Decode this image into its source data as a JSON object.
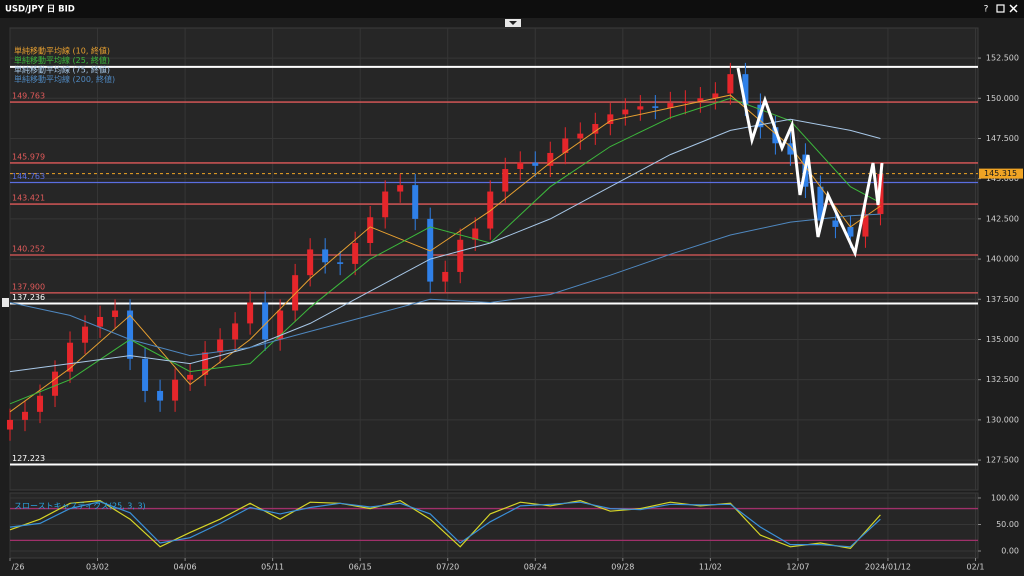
{
  "window": {
    "title": "USD/JPY 日 BID",
    "help": "?"
  },
  "chart_data": [
    {
      "type": "candlestick",
      "x": [
        0,
        6,
        12,
        18,
        24,
        30,
        36,
        42,
        48,
        54,
        60,
        66,
        72,
        78,
        84,
        90,
        96,
        102,
        108,
        114,
        120,
        126,
        132,
        138,
        144,
        150,
        156,
        162,
        168,
        174,
        180,
        186,
        192,
        198,
        204,
        210,
        216,
        222,
        228,
        234,
        240,
        246,
        252,
        258,
        264,
        270,
        276,
        282,
        288,
        294,
        300,
        306,
        312,
        318,
        324,
        330,
        336,
        342,
        348
      ],
      "open": [
        129.4,
        130.0,
        130.5,
        131.5,
        133.0,
        134.8,
        135.8,
        136.4,
        136.8,
        133.8,
        131.8,
        131.2,
        132.5,
        132.8,
        134.2,
        135.0,
        136.0,
        137.3,
        135.0,
        136.8,
        139.0,
        140.6,
        139.8,
        139.7,
        141.0,
        142.6,
        144.2,
        144.6,
        142.5,
        138.6,
        139.2,
        141.2,
        141.9,
        144.2,
        145.6,
        146.0,
        145.8,
        146.6,
        147.5,
        147.8,
        148.4,
        149.0,
        149.3,
        149.5,
        149.4,
        149.7,
        149.8,
        150.0,
        150.3,
        151.5,
        149.6,
        148.2,
        147.2,
        146.5,
        144.5,
        142.4,
        142.0,
        141.4,
        142.8
      ],
      "high": [
        130.7,
        131.2,
        132.2,
        133.7,
        135.5,
        136.5,
        137.1,
        137.5,
        137.5,
        134.5,
        132.5,
        133.2,
        133.5,
        134.9,
        135.7,
        136.7,
        138.0,
        138.0,
        137.5,
        139.7,
        141.3,
        141.3,
        140.5,
        141.7,
        143.3,
        144.9,
        145.3,
        145.3,
        143.2,
        139.9,
        141.9,
        142.6,
        144.9,
        146.3,
        146.7,
        146.7,
        147.3,
        148.2,
        148.5,
        149.1,
        149.7,
        150.0,
        150.2,
        150.2,
        150.4,
        150.5,
        150.7,
        151.0,
        152.2,
        152.2,
        150.3,
        148.9,
        147.9,
        147.2,
        145.2,
        143.1,
        142.7,
        143.5,
        146.0
      ],
      "low": [
        128.7,
        129.3,
        129.8,
        130.8,
        132.3,
        134.1,
        135.1,
        135.7,
        133.1,
        131.1,
        130.5,
        130.5,
        131.8,
        132.1,
        133.5,
        134.3,
        135.3,
        134.3,
        134.3,
        136.1,
        138.3,
        139.1,
        139.0,
        139.0,
        140.3,
        141.9,
        143.5,
        141.8,
        137.9,
        137.9,
        138.5,
        140.5,
        141.2,
        143.5,
        144.9,
        145.1,
        145.1,
        145.9,
        146.8,
        147.1,
        147.7,
        148.3,
        148.6,
        148.7,
        148.7,
        149.0,
        149.1,
        149.3,
        149.6,
        148.9,
        147.5,
        146.5,
        145.8,
        143.8,
        141.7,
        141.3,
        140.7,
        140.7,
        142.1
      ],
      "close": [
        130.0,
        130.5,
        131.5,
        133.0,
        134.8,
        135.8,
        136.4,
        136.8,
        133.8,
        131.8,
        131.2,
        132.5,
        132.8,
        134.2,
        135.0,
        136.0,
        137.3,
        135.0,
        136.8,
        139.0,
        140.6,
        139.8,
        139.7,
        141.0,
        142.6,
        144.2,
        144.6,
        142.5,
        138.6,
        139.2,
        141.2,
        141.9,
        144.2,
        145.6,
        146.0,
        145.8,
        146.6,
        147.5,
        147.8,
        148.4,
        149.0,
        149.3,
        149.5,
        149.4,
        149.7,
        149.8,
        150.0,
        150.3,
        151.5,
        149.6,
        148.2,
        147.2,
        146.5,
        144.5,
        142.4,
        142.0,
        141.4,
        142.8,
        145.3
      ],
      "up_color": "#e5262b",
      "down_color": "#2f80e8",
      "series": [
        {
          "name": "単純移動平均線 (10, 終値)",
          "color": "#e8a030",
          "x": [
            0,
            24,
            48,
            72,
            96,
            120,
            144,
            168,
            192,
            216,
            240,
            264,
            288,
            312,
            336,
            348
          ],
          "values": [
            130.5,
            133.2,
            136.5,
            132.2,
            135.0,
            138.8,
            142.0,
            140.5,
            143.0,
            146.0,
            148.6,
            149.4,
            150.2,
            147.0,
            142.0,
            143.3
          ]
        },
        {
          "name": "単純移動平均線 (25, 終値)",
          "color": "#3cb83c",
          "x": [
            0,
            24,
            48,
            72,
            96,
            120,
            144,
            168,
            192,
            216,
            240,
            264,
            288,
            312,
            336,
            348
          ],
          "values": [
            131.0,
            132.5,
            135.0,
            133.0,
            133.5,
            137.0,
            140.0,
            142.0,
            141.0,
            144.5,
            147.0,
            148.8,
            150.0,
            148.6,
            144.5,
            143.5
          ]
        },
        {
          "name": "単純移動平均線 (75, 終値)",
          "color": "#a8c8e8",
          "x": [
            0,
            24,
            48,
            72,
            96,
            120,
            144,
            168,
            192,
            216,
            240,
            264,
            288,
            312,
            336,
            348
          ],
          "values": [
            133.0,
            133.5,
            134.0,
            133.5,
            134.5,
            136.0,
            138.0,
            140.0,
            141.0,
            142.5,
            144.5,
            146.5,
            148.0,
            148.7,
            148.0,
            147.5
          ]
        },
        {
          "name": "単純移動平均線 (200, 終値)",
          "color": "#4f88c0",
          "x": [
            0,
            24,
            48,
            72,
            96,
            120,
            144,
            168,
            192,
            216,
            240,
            264,
            288,
            312,
            336,
            348
          ],
          "values": [
            137.3,
            136.5,
            135.0,
            134.0,
            134.5,
            135.5,
            136.5,
            137.5,
            137.3,
            137.8,
            139.0,
            140.3,
            141.5,
            142.3,
            142.7,
            142.8
          ]
        }
      ],
      "levels": [
        {
          "value": 151.95,
          "color": "#ffffff"
        },
        {
          "value": 149.763,
          "label": "149.763",
          "color": "#e05a5a"
        },
        {
          "value": 145.979,
          "label": "145.979",
          "color": "#e05a5a"
        },
        {
          "value": 144.763,
          "label": "144.763",
          "color": "#5a6ee0"
        },
        {
          "value": 143.421,
          "label": "143.421",
          "color": "#e05a5a"
        },
        {
          "value": 140.252,
          "label": "140.252",
          "color": "#e05a5a"
        },
        {
          "value": 137.9,
          "label": "137.900",
          "color": "#e05a5a"
        },
        {
          "value": 137.236,
          "label": "137.236",
          "color": "#ffffff"
        },
        {
          "value": 127.223,
          "label": "127.223",
          "color": "#ffffff"
        }
      ],
      "last_price": {
        "value": 145.315,
        "label": "145.315",
        "color": "#f0a424"
      },
      "xlim": [
        0,
        387
      ],
      "ylim": [
        125.64,
        154.37
      ],
      "yticks": [
        {
          "value": 127.5,
          "label": "127.500"
        },
        {
          "value": 130,
          "label": "130.000"
        },
        {
          "value": 132.5,
          "label": "132.500"
        },
        {
          "value": 135,
          "label": "135.000"
        },
        {
          "value": 137.5,
          "label": "137.500"
        },
        {
          "value": 140,
          "label": "140.000"
        },
        {
          "value": 142.5,
          "label": "142.500"
        },
        {
          "value": 145,
          "label": "145.000"
        },
        {
          "value": 147.5,
          "label": "147.500"
        },
        {
          "value": 150,
          "label": "150.000"
        },
        {
          "value": 152.5,
          "label": "152.500"
        }
      ],
      "grid": true
    },
    {
      "type": "line",
      "title": "スローストキャスティクス(25, 3, 3)",
      "x": [
        0,
        12,
        24,
        36,
        48,
        60,
        72,
        84,
        96,
        108,
        120,
        132,
        144,
        156,
        168,
        180,
        192,
        204,
        216,
        228,
        240,
        252,
        264,
        276,
        288,
        300,
        312,
        324,
        336,
        348
      ],
      "series": [
        {
          "color": "#d6d628",
          "values": [
            40,
            60,
            90,
            95,
            60,
            8,
            35,
            60,
            90,
            60,
            92,
            90,
            80,
            95,
            60,
            8,
            70,
            92,
            85,
            95,
            75,
            80,
            92,
            85,
            90,
            30,
            8,
            15,
            5,
            68
          ]
        },
        {
          "color": "#3a90d8",
          "values": [
            45,
            52,
            80,
            93,
            72,
            15,
            25,
            52,
            82,
            70,
            82,
            90,
            83,
            90,
            70,
            15,
            55,
            85,
            88,
            92,
            80,
            78,
            88,
            87,
            88,
            45,
            12,
            12,
            8,
            60
          ]
        }
      ],
      "levels": [
        {
          "value": 80,
          "color": "#a0306a"
        },
        {
          "value": 20,
          "color": "#a0306a"
        }
      ],
      "xlim": [
        0,
        387
      ],
      "xticks": [
        {
          "value": 0,
          "label": "/26"
        },
        {
          "value": 35,
          "label": "03/02"
        },
        {
          "value": 70,
          "label": "04/06"
        },
        {
          "value": 105,
          "label": "05/11"
        },
        {
          "value": 140,
          "label": "06/15"
        },
        {
          "value": 175,
          "label": "07/20"
        },
        {
          "value": 210,
          "label": "08/24"
        },
        {
          "value": 245,
          "label": "09/28"
        },
        {
          "value": 280,
          "label": "11/02"
        },
        {
          "value": 315,
          "label": "12/07"
        },
        {
          "value": 351,
          "label": "2024/01/12"
        },
        {
          "value": 386,
          "label": "02/1"
        }
      ],
      "ylim": [
        -13.2,
        109.4
      ],
      "yticks": [
        {
          "value": 0,
          "label": "0.00"
        },
        {
          "value": 50,
          "label": "50.00"
        },
        {
          "value": 100,
          "label": "100.00"
        }
      ],
      "grid": true
    }
  ]
}
